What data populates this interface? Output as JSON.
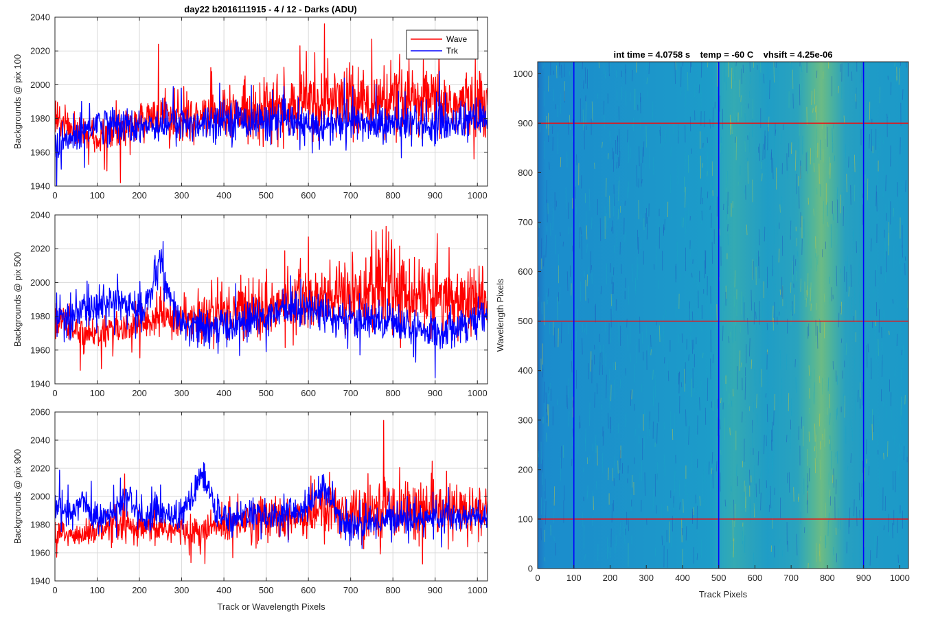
{
  "figure_title": "day22 b2016111915 - 4 / 12 - Darks (ADU)",
  "chart_data": [
    {
      "type": "line",
      "ylabel": "Backgrounds @ pix 100",
      "xlabel": "",
      "xlim": [
        0,
        1024
      ],
      "ylim": [
        1940,
        2040
      ],
      "xticks": [
        0,
        100,
        200,
        300,
        400,
        500,
        600,
        700,
        800,
        900,
        1000
      ],
      "yticks": [
        1940,
        1960,
        1980,
        2000,
        2020,
        2040
      ],
      "grid": true,
      "legend": "top-right",
      "series": [
        {
          "name": "Wave",
          "color": "#ff0000",
          "x": [
            0,
            50,
            100,
            150,
            200,
            250,
            300,
            350,
            400,
            450,
            500,
            550,
            600,
            650,
            700,
            750,
            800,
            850,
            900,
            950,
            1000,
            1024
          ],
          "y": [
            1980,
            1972,
            1968,
            1975,
            1978,
            1982,
            1980,
            1980,
            1982,
            1984,
            1987,
            1985,
            1990,
            1990,
            1992,
            1988,
            1990,
            1988,
            1990,
            1988,
            1990,
            1988
          ],
          "peaks": [
            {
              "x": 123,
              "y": 1949
            },
            {
              "x": 155,
              "y": 1942
            },
            {
              "x": 245,
              "y": 2024
            },
            {
              "x": 580,
              "y": 2023
            },
            {
              "x": 638,
              "y": 2036
            },
            {
              "x": 750,
              "y": 2027
            }
          ]
        },
        {
          "name": "Trk",
          "color": "#0000ff",
          "x": [
            0,
            50,
            100,
            150,
            200,
            250,
            300,
            350,
            400,
            450,
            500,
            550,
            600,
            650,
            700,
            750,
            800,
            850,
            900,
            950,
            1000,
            1024
          ],
          "y": [
            1962,
            1970,
            1978,
            1976,
            1976,
            1977,
            1976,
            1978,
            1980,
            1979,
            1978,
            1978,
            1975,
            1976,
            1978,
            1977,
            1976,
            1978,
            1976,
            1978,
            1980,
            1978
          ],
          "peaks": [
            {
              "x": 15,
              "y": 1950
            },
            {
              "x": 280,
              "y": 1999
            },
            {
              "x": 910,
              "y": 2008
            }
          ]
        }
      ]
    },
    {
      "type": "line",
      "ylabel": "Backgrounds @ pix 500",
      "xlabel": "",
      "xlim": [
        0,
        1024
      ],
      "ylim": [
        1940,
        2040
      ],
      "xticks": [
        0,
        100,
        200,
        300,
        400,
        500,
        600,
        700,
        800,
        900,
        1000
      ],
      "yticks": [
        1940,
        1960,
        1980,
        2000,
        2020,
        2040
      ],
      "grid": true,
      "series": [
        {
          "name": "Wave",
          "color": "#ff0000",
          "x": [
            0,
            50,
            100,
            150,
            200,
            250,
            300,
            350,
            400,
            450,
            500,
            550,
            600,
            650,
            700,
            750,
            800,
            850,
            900,
            950,
            1000,
            1024
          ],
          "y": [
            1978,
            1972,
            1970,
            1972,
            1975,
            1980,
            1978,
            1980,
            1983,
            1985,
            1985,
            1988,
            1990,
            1990,
            1993,
            1995,
            1995,
            1992,
            1993,
            1990,
            1988,
            1988
          ],
          "peaks": [
            {
              "x": 60,
              "y": 1948
            },
            {
              "x": 110,
              "y": 1949
            },
            {
              "x": 600,
              "y": 2027
            },
            {
              "x": 760,
              "y": 2030
            },
            {
              "x": 790,
              "y": 2030
            },
            {
              "x": 905,
              "y": 2029
            }
          ]
        },
        {
          "name": "Trk",
          "color": "#0000ff",
          "x": [
            0,
            50,
            100,
            150,
            200,
            230,
            250,
            270,
            300,
            350,
            400,
            450,
            500,
            550,
            600,
            650,
            700,
            750,
            800,
            850,
            900,
            950,
            1000,
            1024
          ],
          "y": [
            1978,
            1982,
            1985,
            1990,
            1982,
            1995,
            2012,
            1990,
            1975,
            1972,
            1974,
            1976,
            1980,
            1985,
            1985,
            1982,
            1975,
            1978,
            1978,
            1972,
            1970,
            1975,
            1978,
            1978
          ],
          "peaks": [
            {
              "x": 248,
              "y": 2019
            },
            {
              "x": 386,
              "y": 1958
            }
          ]
        }
      ]
    },
    {
      "type": "line",
      "ylabel": "Backgrounds @ pix 900",
      "xlabel": "Track or Wavelength Pixels",
      "xlim": [
        0,
        1024
      ],
      "ylim": [
        1940,
        2060
      ],
      "xticks": [
        0,
        100,
        200,
        300,
        400,
        500,
        600,
        700,
        800,
        900,
        1000
      ],
      "yticks": [
        1940,
        1960,
        1980,
        2000,
        2020,
        2040,
        2060
      ],
      "grid": true,
      "series": [
        {
          "name": "Wave",
          "color": "#ff0000",
          "x": [
            0,
            50,
            100,
            150,
            200,
            250,
            300,
            350,
            400,
            450,
            500,
            550,
            600,
            650,
            700,
            750,
            800,
            850,
            900,
            950,
            1000,
            1024
          ],
          "y": [
            1975,
            1972,
            1975,
            1978,
            1976,
            1978,
            1975,
            1975,
            1980,
            1984,
            1985,
            1985,
            1988,
            1990,
            1990,
            1990,
            1992,
            1990,
            1988,
            1990,
            1990,
            1988
          ],
          "peaks": [
            {
              "x": 165,
              "y": 2016
            },
            {
              "x": 322,
              "y": 1953
            },
            {
              "x": 778,
              "y": 2054
            },
            {
              "x": 870,
              "y": 1952
            }
          ]
        },
        {
          "name": "Trk",
          "color": "#0000ff",
          "x": [
            0,
            40,
            65,
            90,
            130,
            170,
            210,
            250,
            290,
            325,
            350,
            380,
            420,
            460,
            500,
            550,
            600,
            635,
            680,
            720,
            760,
            800,
            850,
            900,
            950,
            1000,
            1024
          ],
          "y": [
            1995,
            1985,
            2000,
            1985,
            1985,
            2000,
            1985,
            1990,
            1985,
            1998,
            2018,
            1988,
            1985,
            1988,
            1985,
            1988,
            1992,
            2008,
            1982,
            1978,
            1982,
            1985,
            1985,
            1985,
            1985,
            1985,
            1984
          ],
          "peaks": [
            {
              "x": 352,
              "y": 2024
            },
            {
              "x": 633,
              "y": 2015
            },
            {
              "x": 540,
              "y": 1978
            }
          ]
        }
      ]
    },
    {
      "type": "heatmap",
      "title": "int time = 4.0758 s    temp = -60 C    vhsift = 4.25e-06",
      "xlabel": "Track Pixels",
      "ylabel": "Wavelength Pixels",
      "xlim": [
        0,
        1024
      ],
      "ylim": [
        0,
        1024
      ],
      "xticks": [
        0,
        100,
        200,
        300,
        400,
        500,
        600,
        700,
        800,
        900,
        1000
      ],
      "yticks": [
        0,
        100,
        200,
        300,
        400,
        500,
        600,
        700,
        800,
        900,
        1000
      ],
      "colormap": [
        "#1f5fbf",
        "#1a8ed0",
        "#1ba3c6",
        "#3cb6a6",
        "#8fc36a",
        "#c9c63e"
      ],
      "bright_bands": [
        {
          "x_from": 500,
          "x_to": 580,
          "level": 0.45
        },
        {
          "x_from": 730,
          "x_to": 800,
          "level": 0.7
        }
      ],
      "vertical_markers": {
        "color": "#0000ff",
        "x": [
          100,
          500,
          900
        ]
      },
      "horizontal_markers": {
        "color": "#ff0000",
        "y": [
          100,
          500,
          900
        ]
      }
    }
  ]
}
